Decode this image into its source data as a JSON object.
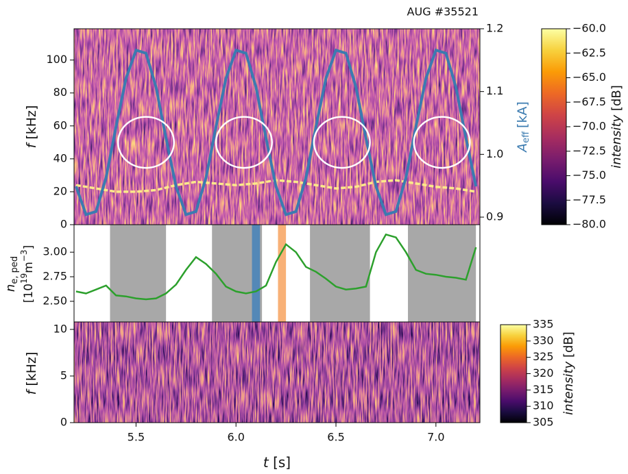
{
  "chart_data": [
    {
      "type": "spectrogram",
      "header": "AUG #35521",
      "ylabel": {
        "symbol": "f",
        "unit": "[kHz]"
      },
      "ylim": [
        0,
        119
      ],
      "yticks": [
        0,
        20,
        40,
        60,
        80,
        100
      ],
      "y2label": {
        "symbol": "A",
        "subscript": "eff",
        "unit": "[kA]"
      },
      "y2lim": [
        0.888,
        1.2
      ],
      "y2ticks": [
        0.9,
        {
          "value": 1.0,
          "label": "1.0"
        },
        1.1,
        1.2
      ],
      "xlim": [
        5.19,
        7.22
      ],
      "x": [
        5.2,
        5.25,
        5.3,
        5.35,
        5.4,
        5.45,
        5.5,
        5.55,
        5.6,
        5.65,
        5.7,
        5.75,
        5.8,
        5.85,
        5.9,
        5.95,
        6.0,
        6.05,
        6.1,
        6.15,
        6.2,
        6.25,
        6.3,
        6.35,
        6.4,
        6.45,
        6.5,
        6.55,
        6.6,
        6.65,
        6.7,
        6.75,
        6.8,
        6.85,
        6.9,
        6.95,
        7.0,
        7.05,
        7.1,
        7.15,
        7.2
      ],
      "line": {
        "axis": "y2",
        "color": "#3b7bb0",
        "values": [
          0.949,
          0.904,
          0.909,
          0.963,
          1.044,
          1.121,
          1.166,
          1.161,
          1.107,
          1.026,
          0.949,
          0.904,
          0.909,
          0.963,
          1.044,
          1.121,
          1.166,
          1.161,
          1.107,
          1.026,
          0.949,
          0.904,
          0.909,
          0.963,
          1.044,
          1.121,
          1.166,
          1.161,
          1.107,
          1.026,
          0.949,
          0.904,
          0.909,
          0.963,
          1.044,
          1.121,
          1.166,
          1.161,
          1.107,
          1.026,
          0.949
        ]
      },
      "ridge": {
        "color": "#fbe98a",
        "x": [
          5.2,
          5.3,
          5.4,
          5.5,
          5.6,
          5.7,
          5.8,
          5.9,
          6.0,
          6.1,
          6.2,
          6.3,
          6.4,
          6.5,
          6.6,
          6.7,
          6.8,
          6.9,
          7.0,
          7.1,
          7.2
        ],
        "values": [
          24,
          22,
          20,
          20,
          21,
          24,
          26,
          25,
          24,
          25,
          27,
          26,
          24,
          22,
          23,
          26,
          27,
          25,
          23,
          22,
          20
        ]
      },
      "ellipse_color": "#ffffff",
      "ellipses": [
        {
          "x": 5.55,
          "y": 50,
          "rx": 0.14,
          "ry": 15.5
        },
        {
          "x": 6.04,
          "y": 50,
          "rx": 0.14,
          "ry": 15.5
        },
        {
          "x": 6.53,
          "y": 50,
          "rx": 0.14,
          "ry": 15.5
        },
        {
          "x": 7.03,
          "y": 50,
          "rx": 0.14,
          "ry": 15.5
        }
      ],
      "colorbar": {
        "label": {
          "text": "intensity",
          "unit": "[dB]"
        },
        "lim": [
          -80,
          -60
        ],
        "ticks": [
          {
            "value": -60,
            "label": "−60.0"
          },
          {
            "value": -62.5,
            "label": "−62.5"
          },
          {
            "value": -65,
            "label": "−65.0"
          },
          {
            "value": -67.5,
            "label": "−67.5"
          },
          {
            "value": -70,
            "label": "−70.0"
          },
          {
            "value": -72.5,
            "label": "−72.5"
          },
          {
            "value": -75,
            "label": "−75.0"
          },
          {
            "value": -77.5,
            "label": "−77.5"
          },
          {
            "value": -80,
            "label": "−80.0"
          }
        ]
      }
    },
    {
      "type": "line",
      "ylabel": {
        "symbol": "n",
        "subscript": "e, ped",
        "open": "[10",
        "exp": "19",
        "unit": "m",
        "unit_exp": "−3",
        "close": "]"
      },
      "ylim": [
        2.29,
        3.28
      ],
      "yticks": [
        {
          "value": 2.5,
          "label": "2.50"
        },
        2.75,
        {
          "value": 3.0,
          "label": "3.00"
        }
      ],
      "xlim": [
        5.19,
        7.22
      ],
      "x": [
        5.2,
        5.25,
        5.3,
        5.35,
        5.4,
        5.45,
        5.5,
        5.55,
        5.6,
        5.65,
        5.7,
        5.75,
        5.8,
        5.85,
        5.9,
        5.95,
        6.0,
        6.05,
        6.1,
        6.15,
        6.2,
        6.25,
        6.3,
        6.35,
        6.4,
        6.45,
        6.5,
        6.55,
        6.6,
        6.65,
        6.7,
        6.75,
        6.8,
        6.85,
        6.9,
        6.95,
        7.0,
        7.05,
        7.1,
        7.15,
        7.2
      ],
      "color": "#2ca02c",
      "values": [
        2.6,
        2.58,
        2.62,
        2.66,
        2.56,
        2.55,
        2.53,
        2.52,
        2.53,
        2.58,
        2.67,
        2.82,
        2.95,
        2.88,
        2.78,
        2.65,
        2.6,
        2.58,
        2.6,
        2.66,
        2.9,
        3.08,
        3.0,
        2.85,
        2.8,
        2.73,
        2.65,
        2.62,
        2.63,
        2.65,
        3.0,
        3.18,
        3.15,
        3.0,
        2.82,
        2.78,
        2.77,
        2.75,
        2.74,
        2.72,
        3.05
      ],
      "bands": [
        {
          "start": 5.37,
          "end": 5.65,
          "color": "#9e9e9e"
        },
        {
          "start": 5.88,
          "end": 6.13,
          "color": "#9e9e9e"
        },
        {
          "start": 6.37,
          "end": 6.67,
          "color": "#9e9e9e"
        },
        {
          "start": 6.86,
          "end": 7.2,
          "color": "#9e9e9e"
        },
        {
          "start": 6.08,
          "end": 6.12,
          "color": "#4a84b8"
        },
        {
          "start": 6.21,
          "end": 6.25,
          "color": "#f7a868"
        }
      ]
    },
    {
      "type": "spectrogram",
      "ylabel": {
        "symbol": "f",
        "unit": "[kHz]"
      },
      "ylim": [
        0,
        10.8
      ],
      "yticks": [
        0,
        5,
        10
      ],
      "xlim": [
        5.19,
        7.22
      ],
      "xticks": [
        5.5,
        {
          "value": 6.0,
          "label": "6.0"
        },
        6.5,
        {
          "value": 7.0,
          "label": "7.0"
        }
      ],
      "xlabel": {
        "symbol": "t",
        "unit": "[s]"
      },
      "colorbar": {
        "label": {
          "text": "intensity",
          "unit": "[dB]"
        },
        "lim": [
          305,
          335
        ],
        "ticks": [
          305,
          310,
          315,
          320,
          325,
          330,
          335
        ]
      }
    }
  ]
}
